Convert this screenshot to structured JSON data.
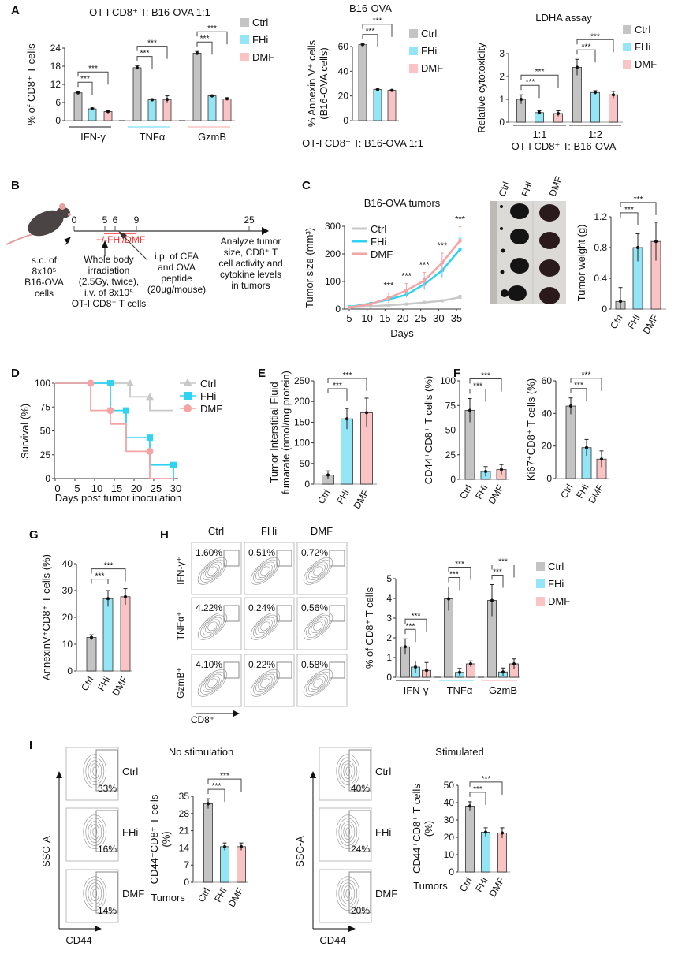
{
  "panels": {
    "A": "A",
    "B": "B",
    "C": "C",
    "D": "D",
    "E": "E",
    "F": "F",
    "G": "G",
    "H": "H",
    "I": "I"
  },
  "colors": {
    "Ctrl": "#c4c4c4",
    "FHi": "#94e6f7",
    "DMF": "#fbc4c4",
    "line_Ctrl": "#c8c8c8",
    "line_FHi": "#2ed3f3",
    "line_DMF": "#f5a3a3",
    "timeline_red": "#ff2a2a"
  },
  "legend": [
    "Ctrl",
    "FHi",
    "DMF"
  ],
  "timeline": {
    "ticks": [
      "0",
      "5",
      "6",
      "9",
      "25"
    ],
    "treatment": "+/-FHi/DMF",
    "step_sc": [
      "s.c. of",
      "8x10⁵",
      "B16-OVA",
      "cells"
    ],
    "step_irradiation": [
      "Whole body",
      "irradiation",
      "(2.5Gy, twice),",
      "i.v. of 8x10⁵",
      "OT-I CD8⁺ T cells"
    ],
    "step_ip": [
      "i.p. of CFA",
      "and OVA",
      "peptide",
      "(20µg/mouse)"
    ],
    "step_analyze": [
      "Analyze tumor",
      "size, CD8⁺ T",
      "cell activity and",
      "cytokine levels",
      "in tumors"
    ],
    "mouse_icon": "mouse-icon"
  },
  "tumor_photo": {
    "labels": [
      "Ctrl",
      "FHi",
      "DMF"
    ]
  },
  "flow_H": {
    "columns": [
      "Ctrl",
      "FHi",
      "DMF"
    ],
    "rows": [
      "IFN-γ⁺",
      "TNFα⁺",
      "GzmB⁺"
    ],
    "xlabel": "CD8⁺",
    "percent": [
      [
        "1.60%",
        "0.51%",
        "0.72%"
      ],
      [
        "4.22%",
        "0.24%",
        "0.56%"
      ],
      [
        "4.10%",
        "0.22%",
        "0.58%"
      ]
    ]
  },
  "flow_I": {
    "ylabel": "SSC-A",
    "xlabel": "CD44",
    "rows": [
      "Ctrl",
      "FHi",
      "DMF"
    ],
    "no_stim": [
      "33%",
      "16%",
      "14%"
    ],
    "stim": [
      "40%",
      "24%",
      "20%"
    ]
  },
  "chart_data": [
    {
      "id": "A1",
      "type": "bar",
      "title": "OT-I CD8⁺ T: B16-OVA 1:1",
      "ylabel": "% of CD8⁺ T cells",
      "ylim": [
        0,
        24
      ],
      "yticks": [
        0,
        6,
        12,
        18,
        24
      ],
      "categories": [
        "IFN-γ",
        "TNFα",
        "GzmB"
      ],
      "series": [
        {
          "name": "Ctrl",
          "values": [
            9.2,
            17.5,
            22.3
          ],
          "errors": [
            0.4,
            0.6,
            0.6
          ]
        },
        {
          "name": "FHi",
          "values": [
            3.9,
            6.9,
            8.2
          ],
          "errors": [
            0.3,
            0.3,
            0.3
          ]
        },
        {
          "name": "DMF",
          "values": [
            3.0,
            7.0,
            7.2
          ],
          "errors": [
            0.3,
            1.2,
            0.4
          ]
        }
      ],
      "significance": [
        {
          "compare": [
            "Ctrl",
            "FHi"
          ],
          "label": "***"
        },
        {
          "compare": [
            "Ctrl",
            "DMF"
          ],
          "label": "***"
        }
      ]
    },
    {
      "id": "A2",
      "type": "bar",
      "title": "B16-OVA",
      "ylabel": [
        "% Annexin V⁺ cells",
        "(B16-OVA cells)"
      ],
      "xlabel": "OT-I CD8⁺ T: B16-OVA 1:1",
      "ylim": [
        0,
        60
      ],
      "yticks": [
        0,
        20,
        40,
        60
      ],
      "categories": [
        "Ctrl",
        "FHi",
        "DMF"
      ],
      "values": [
        61.5,
        25.2,
        24.5
      ],
      "errors": [
        0.6,
        0.4,
        0.4
      ],
      "significance": [
        {
          "compare": [
            "Ctrl",
            "FHi"
          ],
          "label": "***"
        },
        {
          "compare": [
            "Ctrl",
            "DMF"
          ],
          "label": "***"
        }
      ]
    },
    {
      "id": "A3",
      "type": "bar",
      "title": "LDHA assay",
      "ylabel": "Relative cytotoxicity",
      "xlabel": "OT-I CD8⁺ T: B16-OVA",
      "ylim": [
        0,
        3
      ],
      "yticks": [
        0,
        1,
        2,
        3
      ],
      "categories": [
        "1:1",
        "1:2"
      ],
      "series": [
        {
          "name": "Ctrl",
          "values": [
            1.0,
            2.4
          ],
          "errors": [
            0.2,
            0.35
          ]
        },
        {
          "name": "FHi",
          "values": [
            0.42,
            1.3
          ],
          "errors": [
            0.08,
            0.08
          ]
        },
        {
          "name": "DMF",
          "values": [
            0.38,
            1.2
          ],
          "errors": [
            0.12,
            0.15
          ]
        }
      ],
      "significance": [
        {
          "compare": [
            "Ctrl",
            "FHi"
          ],
          "label": "***"
        },
        {
          "compare": [
            "Ctrl",
            "DMF"
          ],
          "label": "***"
        }
      ]
    },
    {
      "id": "C1",
      "type": "line",
      "title": "B16-OVA tumors",
      "xlabel": "Days",
      "ylabel": "Tumor size (mm³)",
      "xlim": [
        5,
        37
      ],
      "ylim": [
        0,
        300
      ],
      "xticks": [
        5,
        10,
        15,
        20,
        25,
        30,
        35
      ],
      "yticks": [
        0,
        100,
        200,
        300
      ],
      "x": [
        5,
        11,
        16,
        21,
        26,
        31,
        36
      ],
      "series": [
        {
          "name": "Ctrl",
          "values": [
            5,
            10,
            14,
            18,
            24,
            30,
            43
          ],
          "errors": [
            2,
            3,
            3,
            3,
            4,
            4,
            7
          ]
        },
        {
          "name": "FHi",
          "values": [
            8,
            20,
            35,
            52,
            90,
            140,
            217
          ],
          "errors": [
            2,
            4,
            8,
            10,
            20,
            25,
            40
          ]
        },
        {
          "name": "DMF",
          "values": [
            6,
            18,
            40,
            68,
            103,
            168,
            248
          ],
          "errors": [
            2,
            4,
            18,
            25,
            30,
            35,
            50
          ]
        }
      ],
      "significance": [
        {
          "x": 16,
          "label": "***"
        },
        {
          "x": 21,
          "label": "***"
        },
        {
          "x": 26,
          "label": "***"
        },
        {
          "x": 31,
          "label": "***"
        },
        {
          "x": 36,
          "label": "***"
        }
      ]
    },
    {
      "id": "C2",
      "type": "bar",
      "ylabel": "Tumor weight (g)",
      "ylim": [
        0,
        1.2
      ],
      "yticks": [
        0,
        0.4,
        0.8,
        1.2
      ],
      "tick_labels": [
        "0",
        "0.4",
        "0.8",
        "1.2"
      ],
      "categories": [
        "Ctrl",
        "FHi",
        "DMF"
      ],
      "values": [
        0.1,
        0.8,
        0.88
      ],
      "errors": [
        0.18,
        0.18,
        0.25
      ],
      "significance": [
        {
          "compare": [
            "Ctrl",
            "FHi"
          ],
          "label": "***"
        },
        {
          "compare": [
            "Ctrl",
            "DMF"
          ],
          "label": "***"
        }
      ]
    },
    {
      "id": "D1",
      "type": "line",
      "subtype": "survival",
      "xlabel": "Days post tumor inoculation",
      "ylabel": "Survival (%)",
      "xlim": [
        0,
        30
      ],
      "ylim": [
        0,
        100
      ],
      "xticks": [
        0,
        5,
        10,
        15,
        20,
        25,
        30
      ],
      "yticks": [
        0,
        25,
        50,
        75,
        100
      ],
      "series": [
        {
          "name": "Ctrl",
          "times": [
            0,
            19,
            24,
            30
          ],
          "survival": [
            100,
            85.7,
            71.4,
            71.4
          ],
          "markers": [
            19,
            24
          ]
        },
        {
          "name": "FHi",
          "times": [
            0,
            14,
            18,
            24,
            30
          ],
          "survival": [
            100,
            71.4,
            42.9,
            14.3,
            0
          ],
          "markers": [
            14,
            18,
            24,
            30
          ]
        },
        {
          "name": "DMF",
          "times": [
            0,
            9,
            14,
            18,
            24,
            30
          ],
          "survival": [
            100,
            71.4,
            57.1,
            28.6,
            0,
            0
          ],
          "markers": [
            9,
            14,
            24
          ]
        }
      ]
    },
    {
      "id": "E1",
      "type": "bar",
      "ylabel": [
        "Tumor Interstitial Fluid",
        "fumarate (nmol/mg protein)"
      ],
      "ylim": [
        0,
        250
      ],
      "yticks": [
        0,
        50,
        100,
        150,
        200,
        250
      ],
      "categories": [
        "Ctrl",
        "FHi",
        "DMF"
      ],
      "values": [
        22,
        158,
        173
      ],
      "errors": [
        10,
        25,
        35
      ],
      "significance": [
        {
          "compare": [
            "Ctrl",
            "FHi"
          ],
          "label": "***"
        },
        {
          "compare": [
            "Ctrl",
            "DMF"
          ],
          "label": "***"
        }
      ]
    },
    {
      "id": "F1",
      "type": "bar",
      "ylabel": "CD44⁺CD8⁺ T cells (%)",
      "ylim": [
        0,
        100
      ],
      "yticks": [
        0,
        25,
        50,
        75,
        100
      ],
      "categories": [
        "Ctrl",
        "FHi",
        "DMF"
      ],
      "values": [
        70,
        8,
        10
      ],
      "errors": [
        12,
        5,
        5
      ],
      "significance": [
        {
          "compare": [
            "Ctrl",
            "FHi"
          ],
          "label": "***"
        },
        {
          "compare": [
            "Ctrl",
            "DMF"
          ],
          "label": "***"
        }
      ]
    },
    {
      "id": "F2",
      "type": "bar",
      "ylabel": "Ki67⁺CD8⁺ T cells (%)",
      "ylim": [
        0,
        60
      ],
      "yticks": [
        0,
        20,
        40,
        60
      ],
      "categories": [
        "Ctrl",
        "FHi",
        "DMF"
      ],
      "values": [
        44.5,
        19,
        12
      ],
      "errors": [
        5,
        5,
        5
      ],
      "significance": [
        {
          "compare": [
            "Ctrl",
            "FHi"
          ],
          "label": "***"
        },
        {
          "compare": [
            "Ctrl",
            "DMF"
          ],
          "label": "***"
        }
      ]
    },
    {
      "id": "G1",
      "type": "bar",
      "ylabel": "AnnexinV⁺CD8⁺ T cells (%)",
      "ylim": [
        0,
        40
      ],
      "yticks": [
        0,
        10,
        20,
        30,
        40
      ],
      "categories": [
        "Ctrl",
        "FHi",
        "DMF"
      ],
      "values": [
        12.5,
        27,
        27.7
      ],
      "errors": [
        1,
        3,
        3
      ],
      "significance": [
        {
          "compare": [
            "Ctrl",
            "FHi"
          ],
          "label": "***"
        },
        {
          "compare": [
            "Ctrl",
            "DMF"
          ],
          "label": "***"
        }
      ]
    },
    {
      "id": "H1",
      "type": "bar",
      "ylabel": "% of CD8⁺ T cells",
      "ylim": [
        0,
        5
      ],
      "yticks": [
        0,
        1,
        2,
        3,
        4,
        5
      ],
      "categories": [
        "IFN-γ",
        "TNFα",
        "GzmB"
      ],
      "series": [
        {
          "name": "Ctrl",
          "values": [
            1.55,
            3.98,
            3.9
          ],
          "errors": [
            0.4,
            0.6,
            0.8
          ]
        },
        {
          "name": "FHi",
          "values": [
            0.52,
            0.25,
            0.27
          ],
          "errors": [
            0.3,
            0.2,
            0.2
          ]
        },
        {
          "name": "DMF",
          "values": [
            0.35,
            0.68,
            0.68
          ],
          "errors": [
            0.4,
            0.15,
            0.25
          ]
        }
      ],
      "significance": [
        {
          "compare": [
            "Ctrl",
            "FHi"
          ],
          "label": "***"
        },
        {
          "compare": [
            "Ctrl",
            "DMF"
          ],
          "label": "***"
        }
      ]
    },
    {
      "id": "I1",
      "type": "bar",
      "title": "No stimulation",
      "ylabel": [
        "CD44⁺CD8⁺ T cells",
        "(%)"
      ],
      "xlabel": "Tumors",
      "ylim": [
        0,
        35
      ],
      "yticks": [
        0,
        7,
        14,
        21,
        28,
        35
      ],
      "categories": [
        "Ctrl",
        "FHi",
        "DMF"
      ],
      "values": [
        32,
        14.5,
        14.5
      ],
      "errors": [
        2,
        1.5,
        1.5
      ],
      "significance": [
        {
          "compare": [
            "Ctrl",
            "FHi"
          ],
          "label": "***"
        },
        {
          "compare": [
            "Ctrl",
            "DMF"
          ],
          "label": "***"
        }
      ]
    },
    {
      "id": "I2",
      "type": "bar",
      "title": "Stimulated",
      "ylabel": [
        "CD44⁺CD8⁺ T cells",
        "(%)"
      ],
      "xlabel": "Tumors",
      "ylim": [
        0,
        50
      ],
      "yticks": [
        0,
        10,
        20,
        30,
        40,
        50
      ],
      "categories": [
        "Ctrl",
        "FHi",
        "DMF"
      ],
      "values": [
        38,
        23,
        22.5
      ],
      "errors": [
        2.5,
        2.5,
        3
      ],
      "significance": [
        {
          "compare": [
            "Ctrl",
            "FHi"
          ],
          "label": "***"
        },
        {
          "compare": [
            "Ctrl",
            "DMF"
          ],
          "label": "***"
        }
      ]
    }
  ]
}
